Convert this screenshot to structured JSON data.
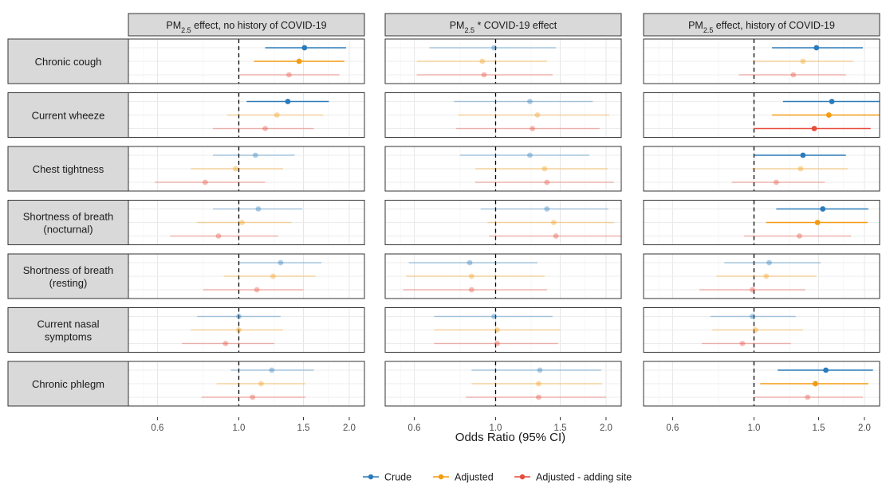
{
  "chart_data": {
    "type": "forest",
    "xlabel": "Odds Ratio (95% CI)",
    "x_scale": "log",
    "xlim": [
      0.5,
      2.2
    ],
    "x_ticks": [
      0.6,
      1.0,
      1.5,
      2.0
    ],
    "x_tick_labels": [
      "0.6",
      "1.0",
      "1.5",
      "2.0"
    ],
    "reference_line": 1.0,
    "grid": true,
    "legend_position": "bottom",
    "panels": [
      {
        "label_parts": [
          "PM",
          "2.5",
          " effect, no history of COVID-19"
        ]
      },
      {
        "label_parts": [
          "PM",
          "2.5",
          " * COVID-19 effect"
        ]
      },
      {
        "label_parts": [
          "PM",
          "2.5",
          " effect, history of COVID-19"
        ]
      }
    ],
    "rows": [
      {
        "lines": [
          "Chronic cough"
        ]
      },
      {
        "lines": [
          "Current wheeze"
        ]
      },
      {
        "lines": [
          "Chest tightness"
        ]
      },
      {
        "lines": [
          "Shortness of breath",
          "(nocturnal)"
        ]
      },
      {
        "lines": [
          "Shortness of breath",
          "(resting)"
        ]
      },
      {
        "lines": [
          "Current nasal",
          "symptoms"
        ]
      },
      {
        "lines": [
          "Chronic phlegm"
        ]
      }
    ],
    "series": [
      {
        "name": "Crude",
        "color": "#2b7bba"
      },
      {
        "name": "Adjusted",
        "color": "#f39c12"
      },
      {
        "name": "Adjusted - adding site",
        "color": "#e74c3c"
      }
    ],
    "estimates": [
      [
        [
          {
            "or": 1.51,
            "lo": 1.18,
            "hi": 1.96,
            "sig": true
          },
          {
            "or": 1.46,
            "lo": 1.1,
            "hi": 1.94,
            "sig": true
          },
          {
            "or": 1.37,
            "lo": 1.0,
            "hi": 1.88,
            "sig": false
          }
        ],
        [
          [
            {
              "or": 0.99,
              "lo": 0.66,
              "hi": 1.46,
              "sig": false
            },
            {
              "or": 0.92,
              "lo": 0.61,
              "hi": 1.38,
              "sig": false
            },
            {
              "or": 0.93,
              "lo": 0.61,
              "hi": 1.43,
              "sig": false
            }
          ]
        ],
        [
          {
            "or": 1.48,
            "lo": 1.12,
            "hi": 1.98,
            "sig": true
          },
          {
            "or": 1.36,
            "lo": 1.0,
            "hi": 1.86,
            "sig": false
          },
          {
            "or": 1.28,
            "lo": 0.91,
            "hi": 1.78,
            "sig": false
          }
        ]
      ],
      [
        [
          {
            "or": 1.36,
            "lo": 1.05,
            "hi": 1.76,
            "sig": true
          },
          {
            "or": 1.27,
            "lo": 0.93,
            "hi": 1.7,
            "sig": false
          },
          {
            "or": 1.18,
            "lo": 0.85,
            "hi": 1.6,
            "sig": false
          }
        ],
        [
          {
            "or": 1.24,
            "lo": 0.77,
            "hi": 1.84,
            "sig": false
          },
          {
            "or": 1.3,
            "lo": 0.79,
            "hi": 2.04,
            "sig": false
          },
          {
            "or": 1.26,
            "lo": 0.78,
            "hi": 1.92,
            "sig": false
          }
        ],
        [
          {
            "or": 1.63,
            "lo": 1.2,
            "hi": 2.2,
            "sig": true
          },
          {
            "or": 1.6,
            "lo": 1.12,
            "hi": 2.2,
            "sig": true
          },
          {
            "or": 1.46,
            "lo": 1.0,
            "hi": 2.08,
            "sig": true
          }
        ]
      ],
      [
        [
          {
            "or": 1.11,
            "lo": 0.85,
            "hi": 1.42,
            "sig": false
          },
          {
            "or": 0.98,
            "lo": 0.74,
            "hi": 1.32,
            "sig": false
          },
          {
            "or": 0.81,
            "lo": 0.59,
            "hi": 1.18,
            "sig": false
          }
        ],
        [
          {
            "or": 1.24,
            "lo": 0.8,
            "hi": 1.8,
            "sig": false
          },
          {
            "or": 1.36,
            "lo": 0.88,
            "hi": 2.02,
            "sig": false
          },
          {
            "or": 1.38,
            "lo": 0.88,
            "hi": 2.1,
            "sig": false
          }
        ],
        [
          {
            "or": 1.36,
            "lo": 1.0,
            "hi": 1.78,
            "sig": true
          },
          {
            "or": 1.34,
            "lo": 0.99,
            "hi": 1.8,
            "sig": false
          },
          {
            "or": 1.15,
            "lo": 0.87,
            "hi": 1.56,
            "sig": false
          }
        ]
      ],
      [
        [
          {
            "or": 1.13,
            "lo": 0.85,
            "hi": 1.49,
            "sig": false
          },
          {
            "or": 1.02,
            "lo": 0.77,
            "hi": 1.39,
            "sig": false
          },
          {
            "or": 0.88,
            "lo": 0.65,
            "hi": 1.28,
            "sig": false
          }
        ],
        [
          {
            "or": 1.38,
            "lo": 0.91,
            "hi": 2.03,
            "sig": false
          },
          {
            "or": 1.44,
            "lo": 0.95,
            "hi": 2.1,
            "sig": false
          },
          {
            "or": 1.46,
            "lo": 0.96,
            "hi": 2.26,
            "sig": false
          }
        ],
        [
          {
            "or": 1.54,
            "lo": 1.15,
            "hi": 2.05,
            "sig": true
          },
          {
            "or": 1.49,
            "lo": 1.08,
            "hi": 2.04,
            "sig": true
          },
          {
            "or": 1.33,
            "lo": 0.94,
            "hi": 1.84,
            "sig": false
          }
        ]
      ],
      [
        [
          {
            "or": 1.3,
            "lo": 1.0,
            "hi": 1.68,
            "sig": false
          },
          {
            "or": 1.24,
            "lo": 0.91,
            "hi": 1.62,
            "sig": false
          },
          {
            "or": 1.12,
            "lo": 0.8,
            "hi": 1.5,
            "sig": false
          }
        ],
        [
          {
            "or": 0.85,
            "lo": 0.58,
            "hi": 1.3,
            "sig": false
          },
          {
            "or": 0.86,
            "lo": 0.57,
            "hi": 1.36,
            "sig": false
          },
          {
            "or": 0.86,
            "lo": 0.56,
            "hi": 1.38,
            "sig": false
          }
        ],
        [
          {
            "or": 1.1,
            "lo": 0.83,
            "hi": 1.52,
            "sig": false
          },
          {
            "or": 1.08,
            "lo": 0.79,
            "hi": 1.48,
            "sig": false
          },
          {
            "or": 0.99,
            "lo": 0.71,
            "hi": 1.38,
            "sig": false
          }
        ]
      ],
      [
        [
          {
            "or": 1.0,
            "lo": 0.77,
            "hi": 1.3,
            "sig": false
          },
          {
            "or": 1.0,
            "lo": 0.74,
            "hi": 1.32,
            "sig": false
          },
          {
            "or": 0.92,
            "lo": 0.7,
            "hi": 1.25,
            "sig": false
          }
        ],
        [
          {
            "or": 0.99,
            "lo": 0.68,
            "hi": 1.43,
            "sig": false
          },
          {
            "or": 1.01,
            "lo": 0.68,
            "hi": 1.5,
            "sig": false
          },
          {
            "or": 1.01,
            "lo": 0.68,
            "hi": 1.48,
            "sig": false
          }
        ],
        [
          {
            "or": 0.99,
            "lo": 0.76,
            "hi": 1.3,
            "sig": false
          },
          {
            "or": 1.01,
            "lo": 0.77,
            "hi": 1.36,
            "sig": false
          },
          {
            "or": 0.93,
            "lo": 0.72,
            "hi": 1.26,
            "sig": false
          }
        ]
      ],
      [
        [
          {
            "or": 1.23,
            "lo": 0.95,
            "hi": 1.6,
            "sig": false
          },
          {
            "or": 1.15,
            "lo": 0.87,
            "hi": 1.52,
            "sig": false
          },
          {
            "or": 1.09,
            "lo": 0.79,
            "hi": 1.52,
            "sig": false
          }
        ],
        [
          {
            "or": 1.32,
            "lo": 0.86,
            "hi": 1.94,
            "sig": false
          },
          {
            "or": 1.31,
            "lo": 0.86,
            "hi": 1.95,
            "sig": false
          },
          {
            "or": 1.31,
            "lo": 0.83,
            "hi": 2.0,
            "sig": false
          }
        ],
        [
          {
            "or": 1.57,
            "lo": 1.16,
            "hi": 2.11,
            "sig": true
          },
          {
            "or": 1.47,
            "lo": 1.04,
            "hi": 2.05,
            "sig": true
          },
          {
            "or": 1.4,
            "lo": 1.0,
            "hi": 1.98,
            "sig": false
          }
        ]
      ]
    ]
  }
}
